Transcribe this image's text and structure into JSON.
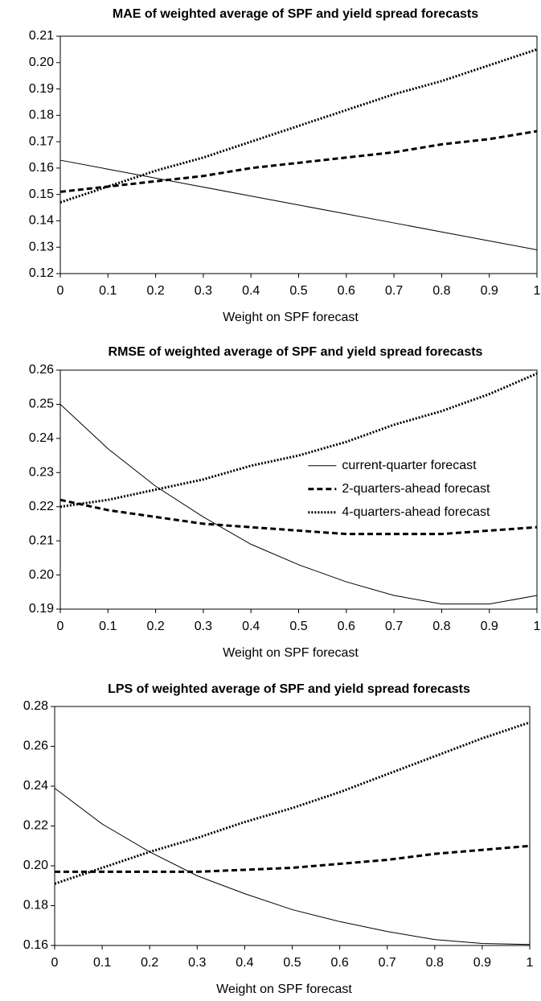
{
  "chart_data": [
    {
      "type": "line",
      "title": "MAE of weighted average of SPF and yield spread forecasts",
      "xlabel": "Weight on SPF forecast",
      "x": [
        0,
        0.1,
        0.2,
        0.3,
        0.4,
        0.5,
        0.6,
        0.7,
        0.8,
        0.9,
        1
      ],
      "xlim": [
        0,
        1
      ],
      "xticks": [
        0,
        0.1,
        0.2,
        0.3,
        0.4,
        0.5,
        0.6,
        0.7,
        0.8,
        0.9,
        1
      ],
      "ylim": [
        0.12,
        0.21
      ],
      "yticks": [
        0.12,
        0.13,
        0.14,
        0.15,
        0.16,
        0.17,
        0.18,
        0.19,
        {
          "value": 0.2,
          "label": "0.20"
        },
        0.21
      ],
      "grid": false,
      "series": [
        {
          "color": "#000000",
          "dash": "solid",
          "values": [
            0.163,
            0.1596,
            0.1562,
            0.1528,
            0.1494,
            0.146,
            0.1426,
            0.1392,
            0.1358,
            0.1324,
            0.129
          ]
        },
        {
          "color": "#000000",
          "dash": "dashed",
          "values": [
            0.151,
            0.153,
            0.155,
            0.157,
            0.16,
            0.162,
            0.164,
            0.166,
            0.169,
            0.171,
            0.174
          ]
        },
        {
          "color": "#000000",
          "dash": "dotted",
          "values": [
            0.147,
            0.153,
            0.159,
            0.164,
            0.17,
            0.176,
            0.182,
            0.188,
            0.193,
            0.199,
            0.205
          ]
        }
      ]
    },
    {
      "type": "line",
      "title": "RMSE of weighted average of SPF and yield spread forecasts",
      "xlabel": "Weight on SPF forecast",
      "x": [
        0,
        0.1,
        0.2,
        0.3,
        0.4,
        0.5,
        0.6,
        0.7,
        0.8,
        0.9,
        1
      ],
      "xlim": [
        0,
        1
      ],
      "xticks": [
        0,
        0.1,
        0.2,
        0.3,
        0.4,
        0.5,
        0.6,
        0.7,
        0.8,
        0.9,
        1
      ],
      "ylim": [
        0.19,
        0.26
      ],
      "yticks": [
        0.19,
        {
          "value": 0.2,
          "label": "0.20"
        },
        0.21,
        0.22,
        0.23,
        0.24,
        0.25,
        0.26
      ],
      "grid": false,
      "series": [
        {
          "name": "current-quarter forecast",
          "color": "#000000",
          "dash": "solid",
          "values": [
            0.25,
            0.237,
            0.226,
            0.217,
            0.209,
            0.203,
            0.198,
            0.194,
            0.1915,
            0.1915,
            0.194
          ]
        },
        {
          "name": "2-quarters-ahead forecast",
          "color": "#000000",
          "dash": "dashed",
          "values": [
            0.222,
            0.219,
            0.217,
            0.215,
            0.214,
            0.213,
            0.212,
            0.212,
            0.212,
            0.213,
            0.214
          ]
        },
        {
          "name": "4-quarters-ahead forecast",
          "color": "#000000",
          "dash": "dotted",
          "values": [
            0.22,
            0.222,
            0.225,
            0.228,
            0.232,
            0.235,
            0.239,
            0.244,
            0.248,
            0.253,
            0.259
          ]
        }
      ]
    },
    {
      "type": "line",
      "title": "LPS of weighted average of SPF and yield spread forecasts",
      "xlabel": "Weight on SPF forecast",
      "x": [
        0,
        0.1,
        0.2,
        0.3,
        0.4,
        0.5,
        0.6,
        0.7,
        0.8,
        0.9,
        1
      ],
      "xlim": [
        0,
        1
      ],
      "xticks": [
        0,
        0.1,
        0.2,
        0.3,
        0.4,
        0.5,
        0.6,
        0.7,
        0.8,
        0.9,
        1
      ],
      "ylim": [
        0.16,
        0.28
      ],
      "yticks": [
        0.16,
        0.18,
        {
          "value": 0.2,
          "label": "0.20"
        },
        0.22,
        0.24,
        0.26,
        0.28
      ],
      "grid": false,
      "series": [
        {
          "color": "#000000",
          "dash": "solid",
          "values": [
            0.239,
            0.221,
            0.207,
            0.195,
            0.186,
            0.178,
            0.172,
            0.167,
            0.163,
            0.161,
            0.1605
          ]
        },
        {
          "color": "#000000",
          "dash": "dashed",
          "values": [
            0.197,
            0.197,
            0.197,
            0.197,
            0.198,
            0.199,
            0.201,
            0.203,
            0.206,
            0.208,
            0.21
          ]
        },
        {
          "color": "#000000",
          "dash": "dotted",
          "values": [
            0.191,
            0.199,
            0.207,
            0.214,
            0.222,
            0.229,
            0.237,
            0.246,
            0.255,
            0.264,
            0.272
          ]
        }
      ]
    }
  ]
}
